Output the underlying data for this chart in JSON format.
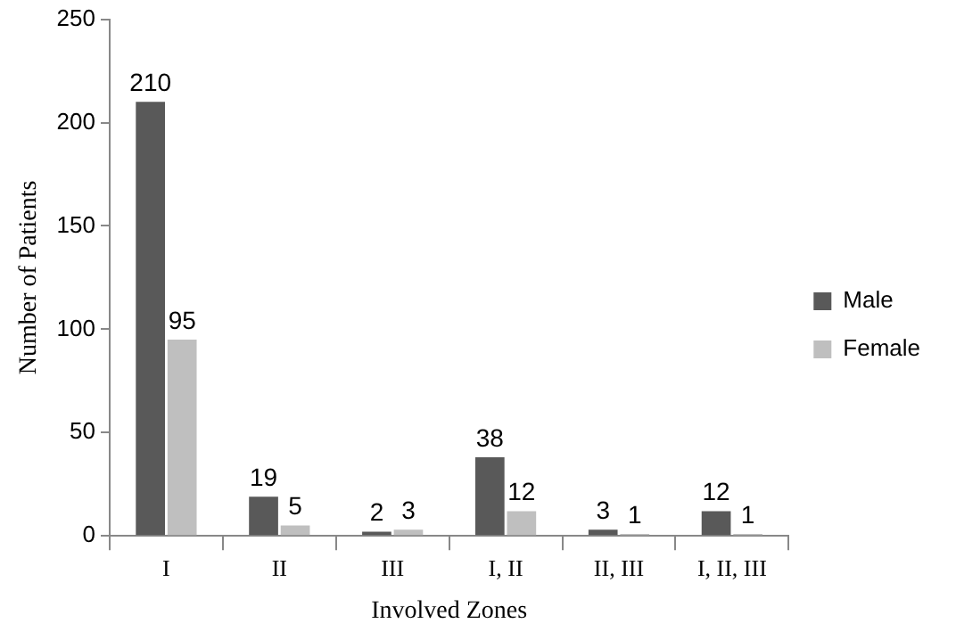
{
  "chart_data": {
    "type": "bar",
    "xlabel": "Involved Zones",
    "ylabel": "Number of Patients",
    "categories": [
      "I",
      "II",
      "III",
      "I, II",
      "II, III",
      "I, II, III"
    ],
    "series": [
      {
        "name": "Male",
        "color": "#595959",
        "values": [
          210,
          19,
          2,
          38,
          3,
          12
        ]
      },
      {
        "name": "Female",
        "color": "#bfbfbf",
        "values": [
          95,
          5,
          3,
          12,
          1,
          1
        ]
      }
    ],
    "ylim": [
      0,
      250
    ],
    "yticks": [
      0,
      50,
      100,
      150,
      200,
      250
    ],
    "grid": false,
    "legend": "right",
    "data_labels": true
  }
}
